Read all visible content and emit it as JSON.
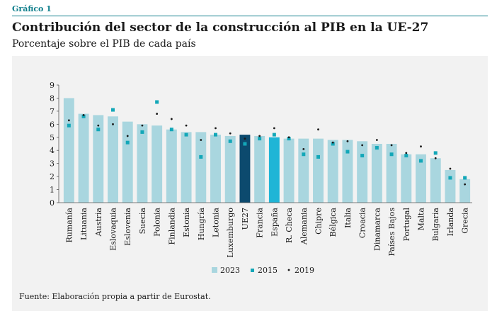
{
  "header": {
    "kicker": "Gráfico 1",
    "title": "Contribución del sector de la construcción al PIB en la UE-27",
    "subtitle": "Porcentaje sobre el PIB de cada país"
  },
  "footer": {
    "source": "Fuente: Elaboración propia a partir de Eurostat."
  },
  "chart_data": {
    "type": "bar",
    "title": "Contribución del sector de la construcción al PIB en la UE-27",
    "subtitle": "Porcentaje sobre el PIB de cada país",
    "xlabel": "",
    "ylabel": "",
    "ylim": [
      0,
      9
    ],
    "yticks": [
      0,
      1,
      2,
      3,
      4,
      5,
      6,
      7,
      8,
      9
    ],
    "grid": false,
    "legend": "bottom",
    "categories": [
      "Rumanía",
      "Lituania",
      "Austria",
      "Eslovaquia",
      "Eslovenia",
      "Suecia",
      "Polonia",
      "Finlandia",
      "Estonia",
      "Hungría",
      "Letonia",
      "Luxemburgo",
      "UE27",
      "Francia",
      "España",
      "R. Checa",
      "Alemania",
      "Chipre",
      "Bélgica",
      "Italia",
      "Croacia",
      "Dinamarca",
      "Países Bajos",
      "Portugal",
      "Malta",
      "Bulgaria",
      "Irlanda",
      "Grecia"
    ],
    "highlight": {
      "UE27": "#0c4a6e",
      "España": "#1fb5d6"
    },
    "series": [
      {
        "name": "2023",
        "kind": "bar",
        "color": "#a9d6df",
        "values": [
          8.0,
          6.8,
          6.7,
          6.6,
          6.2,
          6.0,
          5.9,
          5.6,
          5.4,
          5.4,
          5.2,
          5.1,
          5.2,
          5.1,
          5.0,
          4.9,
          4.9,
          4.9,
          4.8,
          4.8,
          4.7,
          4.5,
          4.5,
          3.7,
          3.7,
          3.4,
          2.5,
          1.8
        ]
      },
      {
        "name": "2015",
        "kind": "marker",
        "color": "#13a7b8",
        "values": [
          5.9,
          6.6,
          5.6,
          7.1,
          4.6,
          5.4,
          7.7,
          5.6,
          5.2,
          3.5,
          5.2,
          4.7,
          4.5,
          4.9,
          5.2,
          4.9,
          3.7,
          3.5,
          4.5,
          3.9,
          3.6,
          4.2,
          3.7,
          3.6,
          3.2,
          3.8,
          1.9,
          1.9
        ]
      },
      {
        "name": "2019",
        "kind": "dot",
        "color": "#1a1a1a",
        "values": [
          6.3,
          6.7,
          5.9,
          6.0,
          5.1,
          5.9,
          6.8,
          6.4,
          5.9,
          4.8,
          5.7,
          5.3,
          4.9,
          5.1,
          5.7,
          5.0,
          4.1,
          5.6,
          4.6,
          4.7,
          4.4,
          4.8,
          4.4,
          3.8,
          4.3,
          3.4,
          2.6,
          1.4
        ]
      }
    ]
  }
}
